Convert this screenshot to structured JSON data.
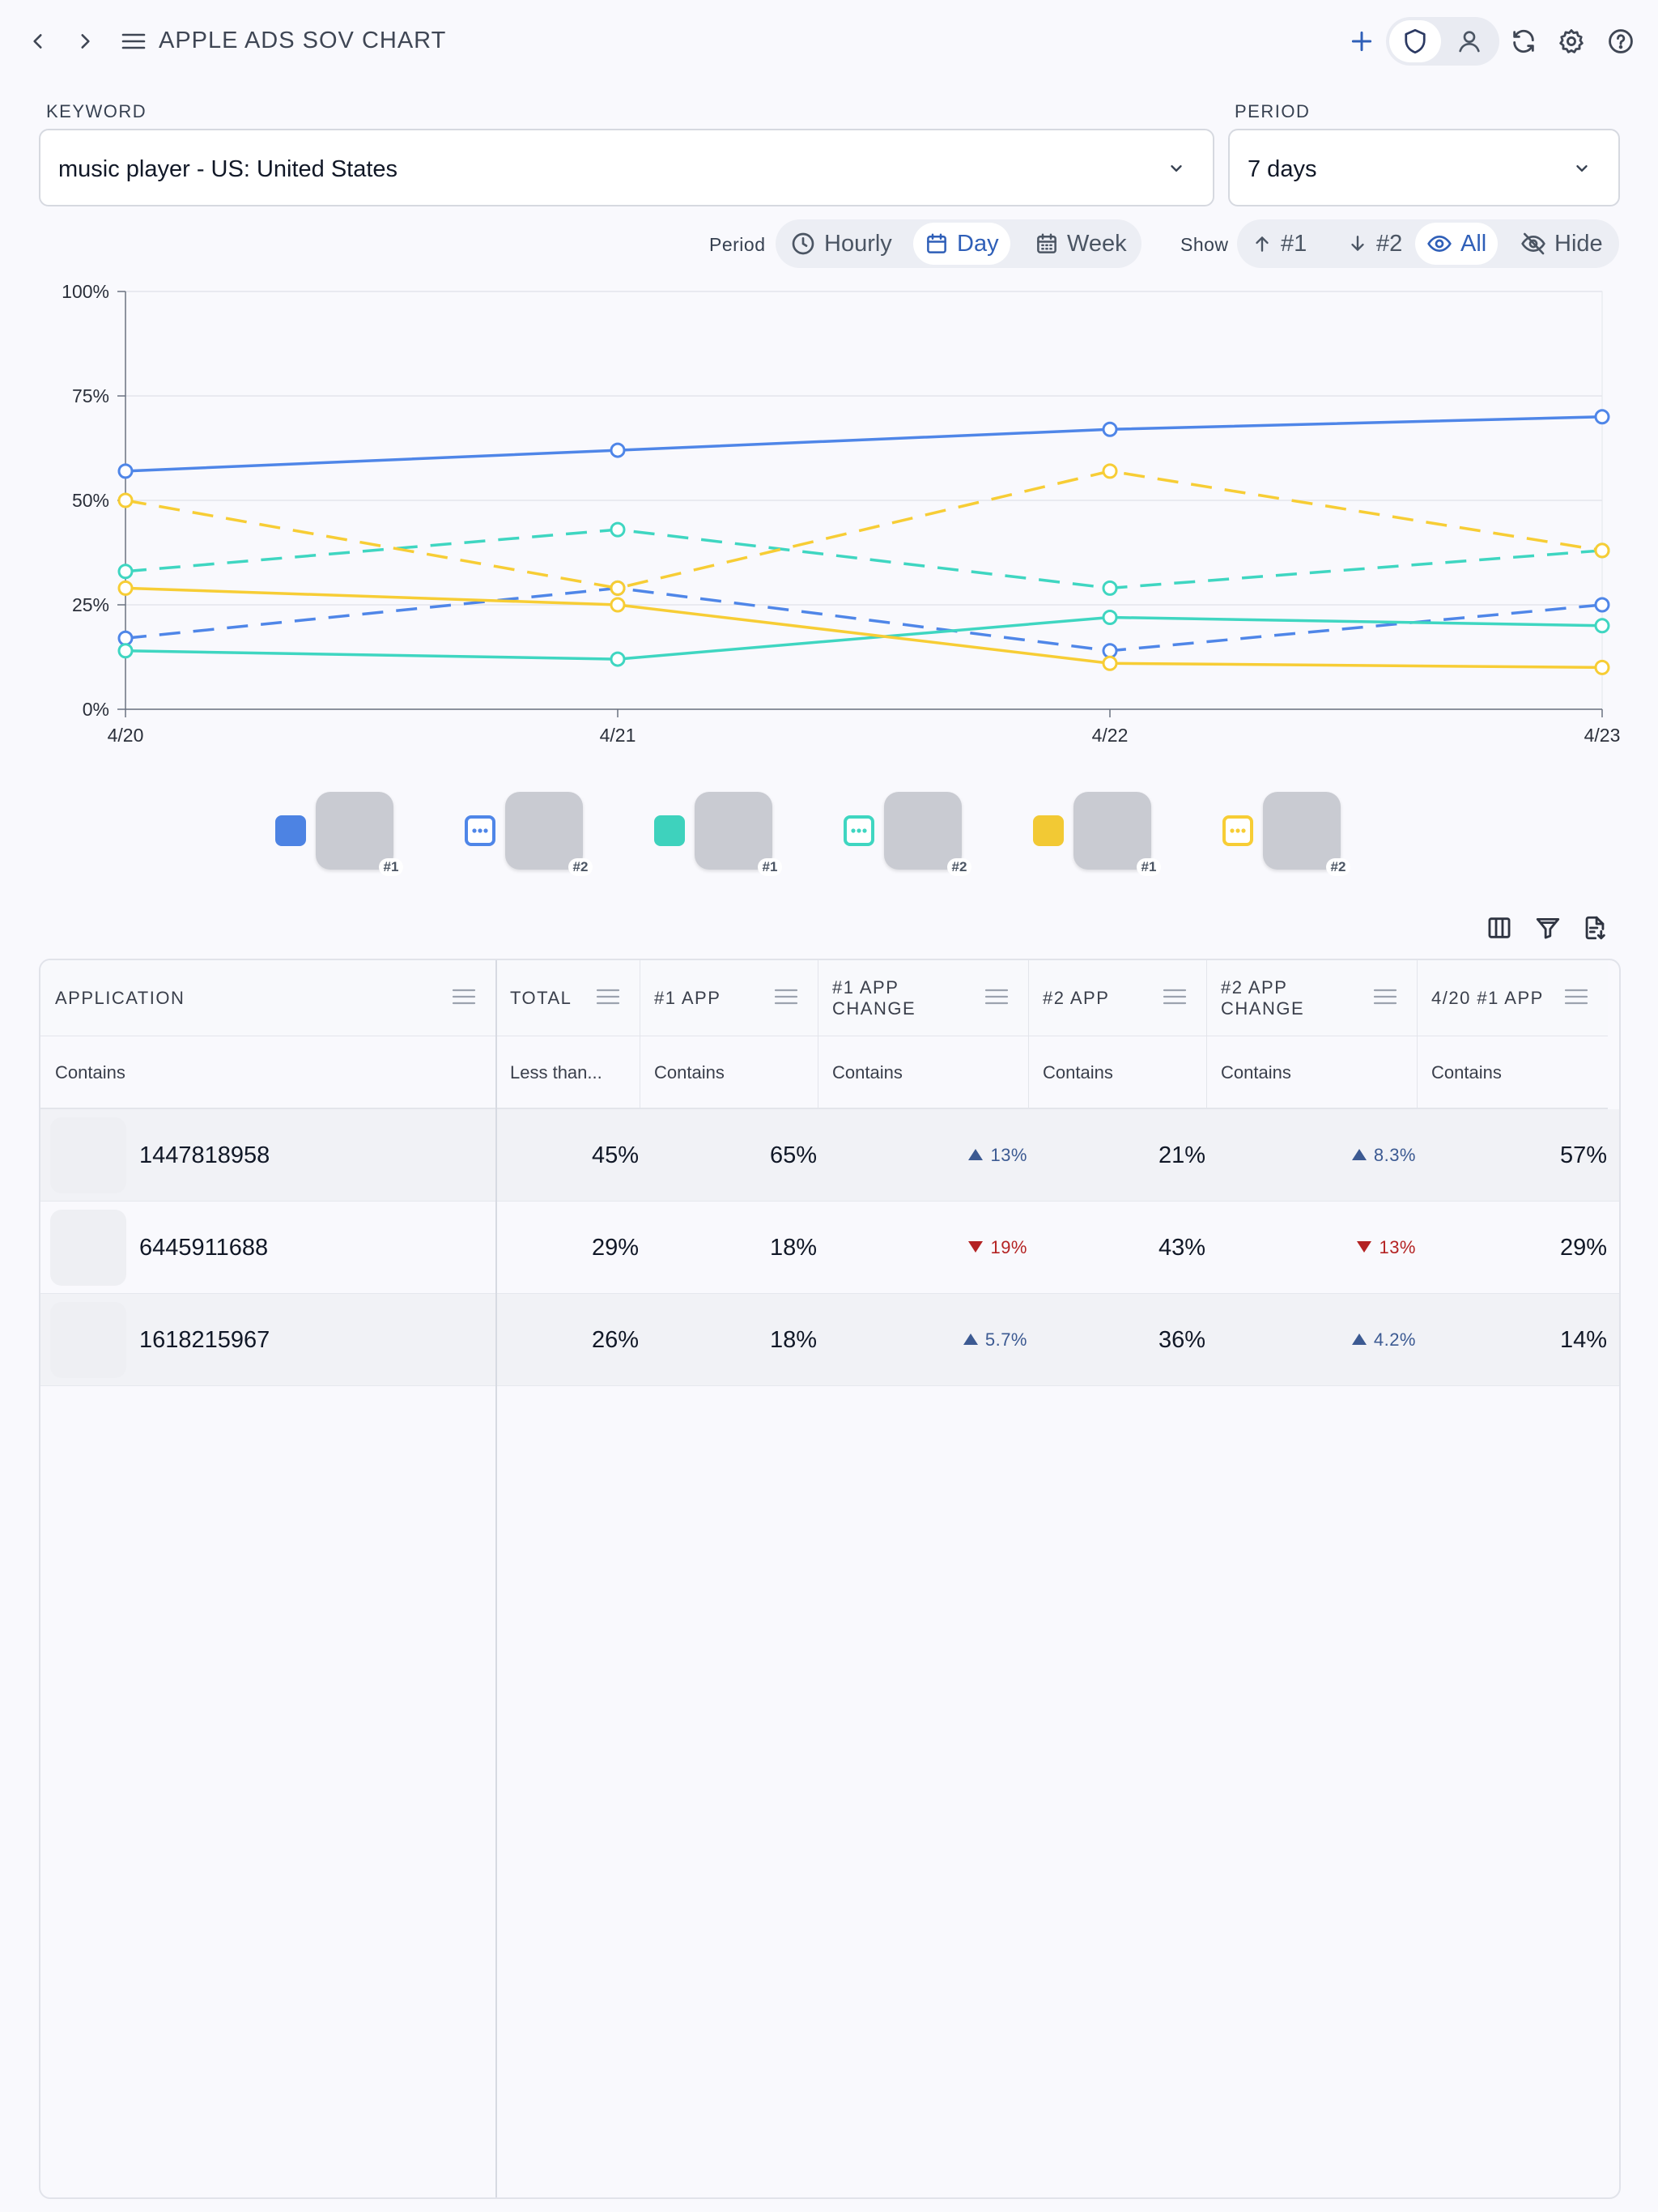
{
  "header": {
    "title": "APPLE ADS SOV CHART"
  },
  "filters": {
    "keyword_label": "KEYWORD",
    "keyword_value": "music player - US: United States",
    "period_label": "PERIOD",
    "period_value": "7 days"
  },
  "controls": {
    "period_label": "Period",
    "period_options": [
      "Hourly",
      "Day",
      "Week"
    ],
    "period_selected": "Day",
    "show_label": "Show",
    "show_options": [
      "#1",
      "#2",
      "All",
      "Hide"
    ],
    "show_selected": "All"
  },
  "colors": {
    "blue": "#4f86e8",
    "teal": "#3fd6c1",
    "yellow": "#f7cd35",
    "up": "#3c5a92",
    "down": "#b42323"
  },
  "chart_data": {
    "type": "line",
    "x": [
      "4/20",
      "4/21",
      "4/22",
      "4/23"
    ],
    "y_ticks": [
      "0%",
      "25%",
      "50%",
      "75%",
      "100%"
    ],
    "ylim": [
      0,
      100
    ],
    "grid": true,
    "series": [
      {
        "color": "blue",
        "dash": false,
        "values": [
          57,
          62,
          67,
          70
        ]
      },
      {
        "color": "blue",
        "dash": true,
        "values": [
          17,
          29,
          14,
          25
        ]
      },
      {
        "color": "teal",
        "dash": false,
        "values": [
          14,
          12,
          22,
          20
        ]
      },
      {
        "color": "teal",
        "dash": true,
        "values": [
          33,
          43,
          29,
          38
        ]
      },
      {
        "color": "yellow",
        "dash": false,
        "values": [
          29,
          25,
          11,
          10
        ]
      },
      {
        "color": "yellow",
        "dash": true,
        "values": [
          50,
          29,
          57,
          38
        ]
      }
    ]
  },
  "legend": [
    {
      "color": "blue",
      "style": "solid",
      "rank": "#1"
    },
    {
      "color": "blue",
      "style": "dashed",
      "rank": "#2"
    },
    {
      "color": "teal",
      "style": "solid",
      "rank": "#1"
    },
    {
      "color": "teal",
      "style": "dashed",
      "rank": "#2"
    },
    {
      "color": "yellow",
      "style": "solid",
      "rank": "#1"
    },
    {
      "color": "yellow",
      "style": "dashed",
      "rank": "#2"
    }
  ],
  "table": {
    "columns": [
      "APPLICATION",
      "TOTAL",
      "#1 APP",
      "#1 APP CHANGE",
      "#2 APP",
      "#2 APP CHANGE",
      "4/20 #1 APP"
    ],
    "filters": [
      "Contains",
      "Less than...",
      "Contains",
      "Contains",
      "Contains",
      "Contains",
      "Contains"
    ],
    "rows": [
      {
        "app": "1447818958",
        "total": "45%",
        "app1": "65%",
        "app1_change": "13%",
        "app1_dir": "up",
        "app2": "21%",
        "app2_change": "8.3%",
        "app2_dir": "up",
        "d420": "57%"
      },
      {
        "app": "6445911688",
        "total": "29%",
        "app1": "18%",
        "app1_change": "19%",
        "app1_dir": "down",
        "app2": "43%",
        "app2_change": "13%",
        "app2_dir": "down",
        "d420": "29%"
      },
      {
        "app": "1618215967",
        "total": "26%",
        "app1": "18%",
        "app1_change": "5.7%",
        "app1_dir": "up",
        "app2": "36%",
        "app2_change": "4.2%",
        "app2_dir": "up",
        "d420": "14%"
      }
    ]
  }
}
